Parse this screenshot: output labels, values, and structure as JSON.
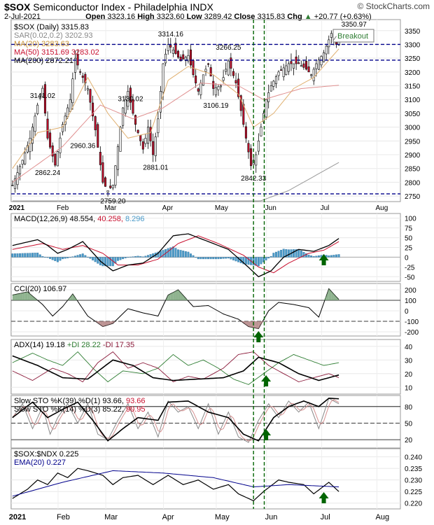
{
  "header": {
    "symbol": "$SOX",
    "name": "Semiconductor Index - Philadelphia",
    "exchange": "INDX",
    "date": "2-Jul-2021",
    "open_label": "Open",
    "open": "3323.16",
    "high_label": "High",
    "high": "3323.60",
    "low_label": "Low",
    "low": "3289.42",
    "close_label": "Close",
    "close": "3315.83",
    "chg_label": "Chg",
    "chg": "+20.77 (+0.63%)",
    "arrow": "▲",
    "copyright": "© StockCharts.com"
  },
  "colors": {
    "up": "#ffffff",
    "down": "#c8102e",
    "hist": "#4a9ac8",
    "ma20": "#e0b070",
    "ma50": "#e09090",
    "ma200": "#999999",
    "navy": "#00008b",
    "green": "#006400"
  },
  "chart_data": [
    {
      "type": "candlestick",
      "legend": [
        {
          "text": "$SOX (Daily) 3315.83",
          "color": "#000000"
        },
        {
          "text": "SAR(0.02,0.2) 3202.93",
          "color": "#888888"
        },
        {
          "text": "MA(20) 3283.63",
          "color": "#c8902e"
        },
        {
          "text": "MA(50) 3151.69 3283.02",
          "color": "#c8102e"
        },
        {
          "text": "MA(200) 2872.21",
          "color": "#000000"
        }
      ],
      "ylim": [
        2730,
        3390
      ],
      "yticks": [
        2750,
        2800,
        2850,
        2900,
        2950,
        3000,
        3050,
        3100,
        3150,
        3200,
        3250,
        3300,
        3350
      ],
      "annotations": [
        {
          "text": "3314.16",
          "x": 63,
          "y": 3314
        },
        {
          "text": "3266.25",
          "x": 86,
          "y": 3266
        },
        {
          "text": "3141.02",
          "x": 12,
          "y": 3141
        },
        {
          "text": "3130.02",
          "x": 47,
          "y": 3130
        },
        {
          "text": "3106.19",
          "x": 81,
          "y": 3106
        },
        {
          "text": "2960.36",
          "x": 28,
          "y": 2960
        },
        {
          "text": "2862.24",
          "x": 14,
          "y": 2862
        },
        {
          "text": "2881.01",
          "x": 57,
          "y": 2881
        },
        {
          "text": "2842.33",
          "x": 96,
          "y": 2842
        },
        {
          "text": "2759.20",
          "x": 40,
          "y": 2759
        },
        {
          "text": "3350.97",
          "x": 136,
          "y": 3350
        }
      ],
      "callout": "Breakout",
      "hlines": [
        3300,
        3243,
        2758
      ]
    },
    {
      "type": "line",
      "legend": [
        {
          "text": "MACD(12,26,9) 48.554, ",
          "color": "#000000"
        },
        {
          "text": "40.258, ",
          "color": "#c8102e"
        },
        {
          "text": "8.296",
          "color": "#4a9ac8"
        }
      ],
      "ylim": [
        -62,
        112
      ],
      "yticks": [
        100,
        75,
        50,
        25,
        0,
        -25,
        -50
      ]
    },
    {
      "type": "line",
      "legend": [
        {
          "text": "CCI(20) 106.97",
          "color": "#000000"
        }
      ],
      "ylim": [
        -240,
        260
      ],
      "yticks": [
        200,
        100,
        0,
        -100,
        -200
      ],
      "hlines": [
        100,
        -100
      ]
    },
    {
      "type": "line",
      "legend": [
        {
          "text": "ADX(14) 19.18 ",
          "color": "#000000"
        },
        {
          "text": "+DI 28.22 ",
          "color": "#2e7d32"
        },
        {
          "text": "-DI 17.35",
          "color": "#8b1a3a"
        }
      ],
      "ylim": [
        5,
        45
      ],
      "yticks": [
        40,
        30,
        20,
        10
      ]
    },
    {
      "type": "line",
      "legend": [
        {
          "text": "Slow STO %K(39) %D(1) 93.66, ",
          "color": "#000000"
        },
        {
          "text": "93.66",
          "color": "#c8102e"
        }
      ],
      "legend2": [
        {
          "text": "Slow STO %K(14) %D(3) 85.22, ",
          "color": "#000000"
        },
        {
          "text": "90.95",
          "color": "#c8102e"
        }
      ],
      "ylim": [
        5,
        100
      ],
      "yticks": [
        80,
        50,
        20
      ],
      "hlines": [
        80,
        20
      ]
    },
    {
      "type": "line",
      "legend": [
        {
          "text": "$SOX:$NDX 0.225",
          "color": "#000000"
        }
      ],
      "legend2": [
        {
          "text": "EMA(20) 0.227",
          "color": "#00008b"
        }
      ],
      "ylim": [
        0.2175,
        0.2435
      ],
      "yticks": [
        0.24,
        0.235,
        0.23,
        0.225,
        0.22
      ]
    }
  ],
  "x_axis": {
    "labels": [
      {
        "text": "2021",
        "x": 0,
        "bold": true
      },
      {
        "text": "Feb",
        "x": 19
      },
      {
        "text": "Mar",
        "x": 38
      },
      {
        "text": "Apr",
        "x": 61
      },
      {
        "text": "May",
        "x": 82
      },
      {
        "text": "Jun",
        "x": 102
      },
      {
        "text": "Jul",
        "x": 124
      },
      {
        "text": "Aug",
        "x": 146
      }
    ],
    "bottom": [
      {
        "text": "2021",
        "x": 0,
        "bold": true
      },
      {
        "text": "Feb",
        "x": 19
      },
      {
        "text": "Mar",
        "x": 38
      },
      {
        "text": "Apr",
        "x": 61
      },
      {
        "text": "May",
        "x": 82
      },
      {
        "text": "Jun",
        "x": 102
      },
      {
        "text": "Jul",
        "x": 124
      },
      {
        "text": "Aug",
        "x": 146
      }
    ]
  }
}
